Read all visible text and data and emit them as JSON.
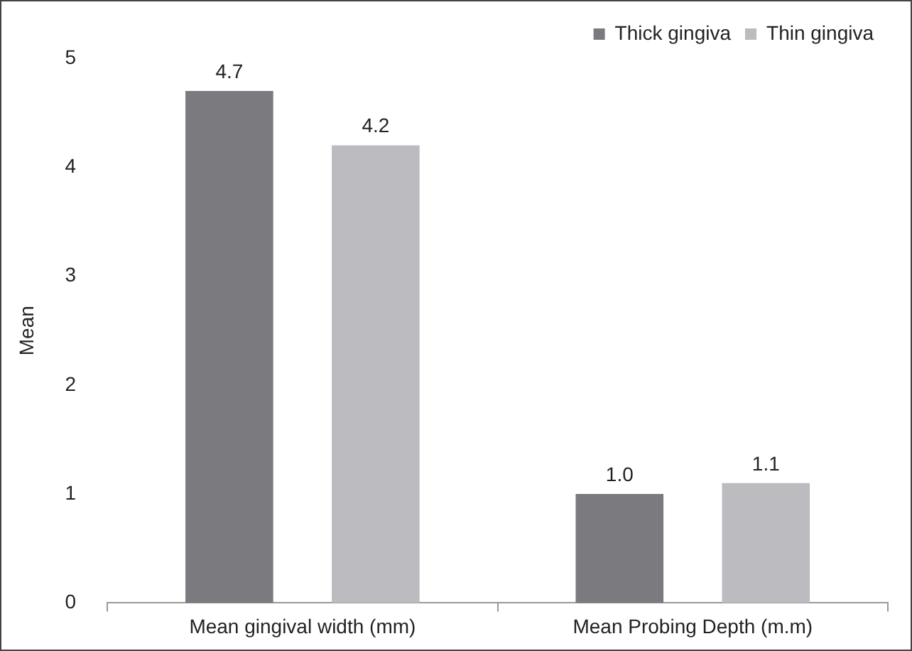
{
  "chart_data": {
    "type": "bar",
    "ylabel": "Mean",
    "categories": [
      "Mean gingival width (mm)",
      "Mean Probing Depth (m.m)"
    ],
    "series": [
      {
        "name": "Thick gingiva",
        "color": "#7b7b7f",
        "values": [
          4.7,
          1.0
        ],
        "value_labels": [
          "4.7",
          "1.0"
        ]
      },
      {
        "name": "Thin gingiva",
        "color": "#bcbcc0",
        "values": [
          4.2,
          1.1
        ],
        "value_labels": [
          "4.2",
          "1.1"
        ]
      }
    ],
    "ylim": [
      0,
      5
    ],
    "yticks": [
      0,
      1,
      2,
      3,
      4,
      5
    ],
    "grid": false,
    "legend": "top right"
  }
}
